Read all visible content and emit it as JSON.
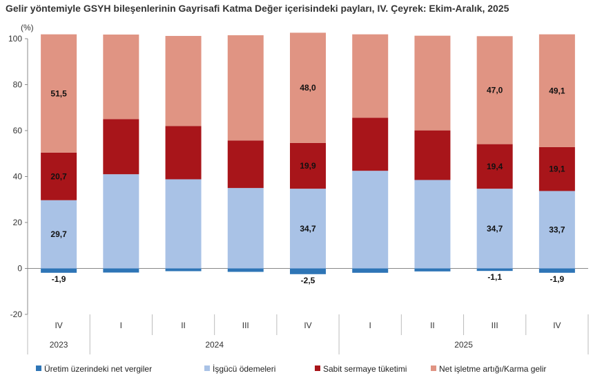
{
  "chart_data": {
    "type": "bar",
    "stacked": true,
    "title": "Gelir yöntemiyle GSYH bileşenlerinin Gayrisafi Katma Değer içerisindeki payları, IV. Çeyrek: Ekim-Aralık, 2025",
    "ylabel": "(%)",
    "ylim": [
      -20,
      100
    ],
    "yticks": [
      -20,
      0,
      20,
      40,
      60,
      80,
      100
    ],
    "categories": [
      "IV",
      "I",
      "II",
      "III",
      "IV",
      "I",
      "II",
      "III",
      "IV"
    ],
    "year_groups": [
      {
        "label": "2023",
        "span": 1
      },
      {
        "label": "2024",
        "span": 4
      },
      {
        "label": "2025",
        "span": 4
      }
    ],
    "series": [
      {
        "name": "Üretim üzerindeki net vergiler",
        "color": "#2e75b6",
        "values": [
          -1.9,
          -1.8,
          -1.2,
          -1.5,
          -2.5,
          -1.9,
          -1.3,
          -1.1,
          -1.9
        ],
        "labels": [
          "-1,9",
          "",
          "",
          "",
          "-2,5",
          "",
          "",
          "-1,1",
          "-1,9"
        ]
      },
      {
        "name": "İşgücü ödemeleri",
        "color": "#a9c2e6",
        "values": [
          29.7,
          41.0,
          38.8,
          35.0,
          34.7,
          42.5,
          38.5,
          34.7,
          33.7
        ],
        "labels": [
          "29,7",
          "",
          "",
          "",
          "34,7",
          "",
          "",
          "34,7",
          "33,7"
        ]
      },
      {
        "name": "Sabit sermaye tüketimi",
        "color": "#a8151a",
        "values": [
          20.7,
          24.0,
          23.2,
          20.7,
          19.9,
          23.1,
          21.6,
          19.4,
          19.1
        ],
        "labels": [
          "20,7",
          "",
          "",
          "",
          "19,9",
          "",
          "",
          "19,4",
          "19,1"
        ]
      },
      {
        "name": "Net işletme artığı/Karma gelir",
        "color": "#e09483",
        "values": [
          51.5,
          36.8,
          39.2,
          45.8,
          48.0,
          36.3,
          41.2,
          47.0,
          49.1
        ],
        "labels": [
          "51,5",
          "",
          "",
          "",
          "48,0",
          "",
          "",
          "47,0",
          "49,1"
        ]
      }
    ],
    "grid": false,
    "legend_position": "bottom"
  }
}
